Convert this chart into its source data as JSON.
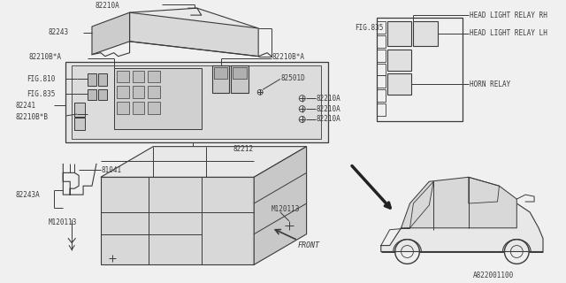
{
  "bg_color": "#f0f0f0",
  "line_color": "#3a3a3a",
  "font_size": 5.5,
  "font_family": "monospace",
  "labels": {
    "82210A_top": "82210A",
    "82243": "82243",
    "82210BA_top": "82210B*A",
    "82210BA_mid": "82210B*A",
    "82501D": "82501D",
    "FIG810": "FIG.810",
    "FIG835": "FIG.835",
    "82241": "82241",
    "82210BB": "82210B*B",
    "82210A_1": "82210A",
    "82210A_2": "82210A",
    "82210A_3": "82210A",
    "82212": "82212",
    "81041": "81041",
    "82243A": "82243A",
    "M120113_l": "M120113",
    "M120113_r": "M120113",
    "FIG835_relay": "FIG.835",
    "relay_rh": "HEAD LIGHT RELAY RH",
    "relay_lh": "HEAD LIGHT RELAY LH",
    "horn_relay": "HORN RELAY",
    "bottom_id": "A822001100",
    "front": "FRONT"
  }
}
